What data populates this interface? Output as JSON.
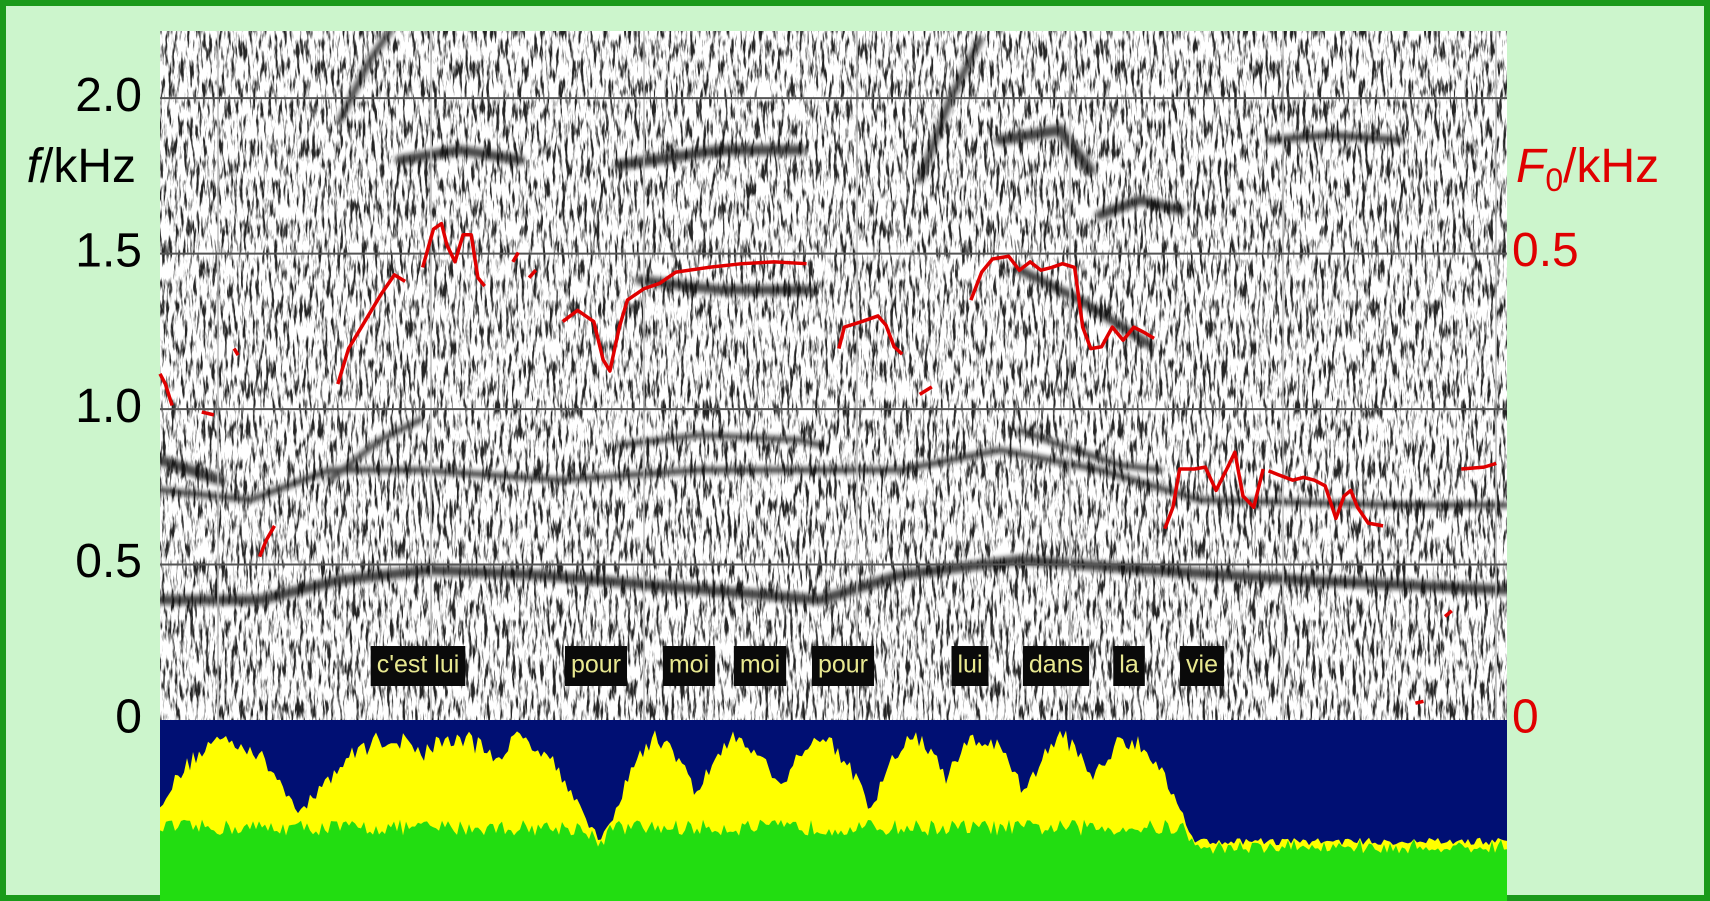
{
  "chart_data": {
    "type": "spectrogram",
    "ylabel": {
      "symbol": "f",
      "unit": "/kHz"
    },
    "y2label": {
      "symbol": "F",
      "subscript": "0",
      "unit": "/kHz"
    },
    "ylim": [
      0,
      2.2
    ],
    "yticks": [
      0,
      0.5,
      {
        "value": 1,
        "label": "1.0"
      },
      1.5,
      {
        "value": 2,
        "label": "2.0"
      }
    ],
    "y2lim": [
      0,
      0.733
    ],
    "y2ticks": [
      0,
      0.5
    ],
    "xlim": [
      0,
      100
    ],
    "grid": true,
    "words": [
      "c'est lui",
      "pour",
      "moi",
      "moi",
      "pour",
      "lui",
      "dans",
      "la",
      "vie"
    ],
    "series": [
      {
        "color": "#e00000",
        "axis": "y2",
        "x": [
          0,
          0.4,
          0.9,
          null,
          3.1,
          4.0,
          null,
          5.5,
          5.8,
          null,
          7.4,
          7.9,
          8.5,
          null,
          13.2,
          14.0,
          15.2,
          16.4,
          17.4,
          18.2,
          null,
          19.5,
          20.3,
          20.9,
          21.3,
          21.9,
          22.5,
          23.1,
          23.6,
          24.1,
          null,
          26.2,
          26.6,
          null,
          27.4,
          27.9,
          null,
          29.9,
          31.0,
          32.2,
          32.9,
          33.4,
          34.1,
          34.7,
          35.9,
          37.1,
          38.3,
          40.7,
          43.2,
          45.6,
          48.0,
          null,
          50.4,
          50.8,
          52.1,
          53.3,
          53.9,
          54.5,
          55.1,
          null,
          56.4,
          57.3,
          null,
          60.2,
          61.0,
          61.8,
          63.0,
          63.8,
          64.6,
          65.4,
          66.2,
          67.0,
          67.9,
          68.5,
          69.1,
          69.9,
          70.7,
          71.5,
          72.3,
          73.1,
          73.8,
          null,
          74.6,
          75.2,
          75.7,
          76.8,
          77.6,
          78.4,
          79.2,
          79.8,
          80.4,
          81.2,
          81.9,
          null,
          82.3,
          83.0,
          84.1,
          84.9,
          85.7,
          86.5,
          87.3,
          87.9,
          88.4,
          88.9,
          89.7,
          90.8,
          null,
          93.2,
          93.8,
          null,
          95.4,
          95.9,
          null,
          96.6,
          98.3,
          99.2
        ],
        "values": [
          0.371,
          0.36,
          0.337,
          null,
          0.33,
          0.327,
          null,
          0.398,
          0.391,
          null,
          0.175,
          0.193,
          0.208,
          null,
          0.36,
          0.398,
          0.427,
          0.456,
          0.477,
          0.47,
          null,
          0.485,
          0.526,
          0.532,
          0.509,
          0.491,
          0.52,
          0.52,
          0.474,
          0.465,
          null,
          0.491,
          0.501,
          null,
          0.474,
          0.482,
          null,
          0.427,
          0.439,
          0.427,
          0.386,
          0.374,
          0.421,
          0.45,
          0.462,
          0.468,
          0.48,
          0.485,
          0.489,
          0.491,
          0.489,
          null,
          0.398,
          0.421,
          0.427,
          0.433,
          0.423,
          0.4,
          0.392,
          null,
          0.349,
          0.357,
          null,
          0.45,
          0.48,
          0.494,
          0.497,
          0.482,
          0.491,
          0.482,
          0.485,
          0.489,
          0.485,
          0.421,
          0.398,
          0.4,
          0.421,
          0.407,
          0.421,
          0.415,
          0.409,
          null,
          0.205,
          0.228,
          0.269,
          0.269,
          0.271,
          0.246,
          0.269,
          0.287,
          0.24,
          0.228,
          0.269,
          null,
          0.267,
          0.263,
          0.257,
          0.26,
          0.257,
          0.251,
          0.216,
          0.24,
          0.246,
          0.228,
          0.211,
          0.208,
          null,
          0.018,
          0.02,
          null,
          0.111,
          0.117,
          null,
          0.269,
          0.271,
          0.275
        ]
      }
    ]
  }
}
